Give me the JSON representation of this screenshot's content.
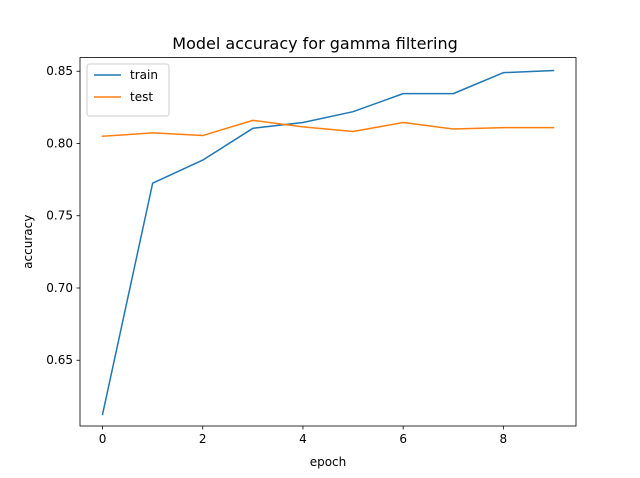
{
  "chart_data": {
    "type": "line",
    "title": "Model accuracy for gamma filtering",
    "xlabel": "epoch",
    "ylabel": "accuracy",
    "x": [
      0,
      1,
      2,
      3,
      4,
      5,
      6,
      7,
      8,
      9
    ],
    "xlim": [
      -0.45,
      9.45
    ],
    "ylim": [
      0.6045,
      0.8595
    ],
    "xticks": [
      0,
      2,
      4,
      6,
      8
    ],
    "yticks": [
      0.65,
      0.7,
      0.75,
      0.8,
      0.85
    ],
    "grid": false,
    "legend_position": "upper left",
    "series": [
      {
        "name": "train",
        "color": "#1f77b4",
        "values": [
          0.6125,
          0.7725,
          0.7885,
          0.8105,
          0.8145,
          0.822,
          0.8345,
          0.8345,
          0.849,
          0.8505
        ]
      },
      {
        "name": "test",
        "color": "#ff7f0e",
        "values": [
          0.805,
          0.8073,
          0.8055,
          0.816,
          0.8115,
          0.8083,
          0.8145,
          0.81,
          0.811,
          0.811
        ]
      }
    ]
  }
}
